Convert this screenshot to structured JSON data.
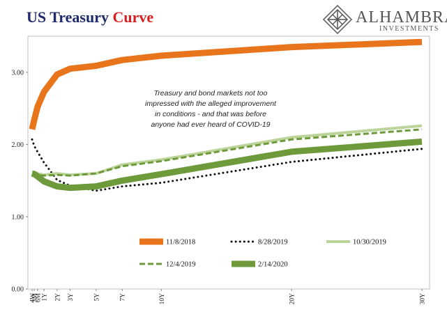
{
  "title": {
    "main": "US Treasury",
    "accent": "Curve"
  },
  "logo": {
    "name": "ALHAMBRA",
    "sub": "INVESTMENTS",
    "icon": "diamond-lattice-logo"
  },
  "annotation": "Treasury and bond markets not too impressed with the alleged improvement in conditions - and that was before anyone  had ever heard of COVID-19",
  "chart_data": {
    "type": "line",
    "categories": [
      "4W",
      "3M",
      "6M",
      "1Y",
      "2Y",
      "3Y",
      "5Y",
      "7Y",
      "10Y",
      "20Y",
      "30Y"
    ],
    "x_months": [
      1,
      3,
      6,
      12,
      24,
      36,
      60,
      84,
      120,
      240,
      360
    ],
    "ylim": [
      0,
      3.5
    ],
    "yticks": [
      "0.00",
      "1.00",
      "2.00",
      "3.00"
    ],
    "ytick_values": [
      0,
      1,
      2,
      3
    ],
    "grid": false,
    "legend_position": "bottom-center",
    "series": [
      {
        "name": "11/8/2018",
        "color": "#e8741c",
        "style": "solid",
        "width": 9,
        "values": [
          2.21,
          2.34,
          2.52,
          2.73,
          2.97,
          3.05,
          3.09,
          3.17,
          3.23,
          3.35,
          3.42
        ]
      },
      {
        "name": "8/28/2019",
        "color": "#111111",
        "style": "dotted",
        "width": 3,
        "values": [
          2.07,
          1.98,
          1.9,
          1.75,
          1.51,
          1.43,
          1.36,
          1.42,
          1.47,
          1.76,
          1.94
        ]
      },
      {
        "name": "10/30/2019",
        "color": "#bcd49a",
        "style": "solid",
        "width": 4,
        "values": [
          1.62,
          1.62,
          1.6,
          1.58,
          1.6,
          1.58,
          1.6,
          1.72,
          1.79,
          2.1,
          2.26
        ]
      },
      {
        "name": "12/4/2019",
        "color": "#6e9a3c",
        "style": "dashed",
        "width": 3,
        "values": [
          1.59,
          1.59,
          1.58,
          1.57,
          1.58,
          1.57,
          1.6,
          1.7,
          1.77,
          2.07,
          2.21
        ]
      },
      {
        "name": "2/14/2020",
        "color": "#6e9a3c",
        "style": "solid",
        "width": 9,
        "values": [
          1.6,
          1.59,
          1.56,
          1.49,
          1.42,
          1.4,
          1.42,
          1.5,
          1.59,
          1.9,
          2.04
        ]
      }
    ]
  }
}
